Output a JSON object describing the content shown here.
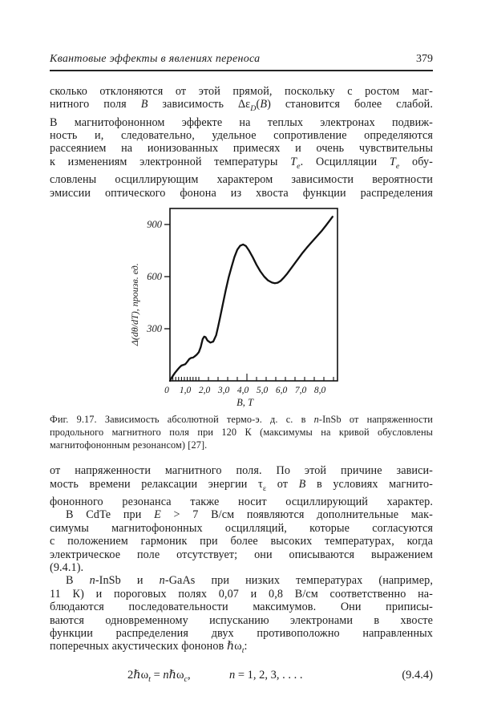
{
  "page": {
    "background": "#ffffff",
    "text_color": "#1c1c1c",
    "page_number": "379"
  },
  "header": {
    "title": "Квантовые эффекты в явлениях переноса"
  },
  "paragraphs": [
    {
      "id": "p1",
      "lines": [
        {
          "html": "сколько отклоняются от этой прямой, поскольку с ростом маг-",
          "j": true,
          "ind": false
        },
        {
          "html": "нитного поля <i>B</i> зависимость Δε<sub><i>D</i></sub>(<i>B</i>) становится более слабой.",
          "j": true,
          "ind": false
        },
        {
          "html": "В магнитофононном эффекте на теплых электронах подвиж-",
          "j": true,
          "ind": false
        },
        {
          "html": "ность и, следовательно, удельное сопротивление определяются",
          "j": true,
          "ind": false
        },
        {
          "html": "рассеянием на ионизованных примесях и очень чувствительны",
          "j": true,
          "ind": false
        },
        {
          "html": "к изменениям электронной температуры <i>T<sub>e</sub></i>. Осцилляции <i>T<sub>e</sub></i> обу-",
          "j": true,
          "ind": false
        },
        {
          "html": "словлены осциллирующим характером зависимости вероятности",
          "j": true,
          "ind": false
        },
        {
          "html": "эмиссии оптического фонона из хвоста функции распределения",
          "j": true,
          "ind": false
        }
      ]
    },
    {
      "id": "p2",
      "lines": [
        {
          "html": "от напряженности магнитного поля. По этой причине зависи-",
          "j": true,
          "ind": false
        },
        {
          "html": "мость времени релаксации энергии τ<sub>ε</sub> от <i>B</i> в условиях магнито-",
          "j": true,
          "ind": false
        },
        {
          "html": "фононного резонанса также носит осциллирующий характер.",
          "j": true,
          "ind": false
        }
      ]
    },
    {
      "id": "p3",
      "lines": [
        {
          "html": "В CdTe при <i>E</i> &gt; 7 В/см появляются дополнительные мак-",
          "j": true,
          "ind": true
        },
        {
          "html": "симумы магнитофононных осцилляций, которые согласуются",
          "j": true,
          "ind": false
        },
        {
          "html": "с положением гармоник при более высоких температурах, когда",
          "j": true,
          "ind": false
        },
        {
          "html": "электрическое поле отсутствует; они описываются выражением",
          "j": true,
          "ind": false
        },
        {
          "html": "(9.4.1).",
          "j": false,
          "ind": false
        }
      ]
    },
    {
      "id": "p4",
      "lines": [
        {
          "html": "В <i>n</i>-InSb и <i>n</i>-GaAs при низких температурах (например,",
          "j": true,
          "ind": true
        },
        {
          "html": "11 К) и пороговых полях 0,07 и 0,8 В/см соответственно на-",
          "j": true,
          "ind": false
        },
        {
          "html": "блюдаются последовательности максимумов. Они приписы-",
          "j": true,
          "ind": false
        },
        {
          "html": "ваются одновременному испусканию электронами в хвосте",
          "j": true,
          "ind": false
        },
        {
          "html": "функции распределения двух противоположно направленных",
          "j": true,
          "ind": false
        },
        {
          "html": "поперечных акустических фононов ℏω<sub><i>t</i></sub>:",
          "j": false,
          "ind": false
        }
      ]
    }
  ],
  "figure_caption": {
    "lines": [
      {
        "html": "Фиг. 9.17. Зависимость абсолютной термо-э. д. с. в <i>n</i>-InSb от напряженности",
        "j": true
      },
      {
        "html": "продольного магнитного поля при 120 К (максимумы на кривой обусловлены",
        "j": true
      },
      {
        "html": "магнитофононным резонансом) [27].",
        "j": false
      }
    ]
  },
  "equation": {
    "lhs": "2ℏω<sub><i>t</i></sub> = <i>n</i>ℏω<sub><i>c</i></sub>,",
    "mid": "<i>n</i> = 1, 2, 3, . . . .",
    "number": "(9.4.4)"
  },
  "chart_data": {
    "type": "line",
    "title": "",
    "xlabel": "В, Т",
    "ylabel": "Δ(dθ/dT), произв. ед.",
    "xlim": [
      0,
      8.7
    ],
    "ylim": [
      0,
      990
    ],
    "grid": false,
    "legend": "none",
    "x_tick_labels": [
      {
        "v": 0,
        "label": "0"
      },
      {
        "v": 1,
        "label": "1,0"
      },
      {
        "v": 2,
        "label": "2,0"
      },
      {
        "v": 3,
        "label": "3,0"
      },
      {
        "v": 4,
        "label": "4,0"
      },
      {
        "v": 5,
        "label": "5,0"
      },
      {
        "v": 6,
        "label": "6,0"
      },
      {
        "v": 7,
        "label": "7,0"
      },
      {
        "v": 8,
        "label": "8,0"
      }
    ],
    "x_minor_ticks": [
      0.15,
      0.3,
      0.45,
      0.6,
      0.75,
      0.9,
      1.05,
      1.2,
      1.35,
      1.5,
      2,
      2.5,
      3,
      3.5,
      4.5,
      5,
      5.5,
      6,
      6.5,
      7,
      7.5,
      8,
      8.5
    ],
    "x_tall_tick": 4.0,
    "y_ticks": [
      {
        "v": 300,
        "label": "300"
      },
      {
        "v": 600,
        "label": "600"
      },
      {
        "v": 900,
        "label": "900"
      }
    ],
    "line_color": "#111111",
    "series": [
      {
        "name": "thermo-emf vs B",
        "points": [
          [
            0,
            0
          ],
          [
            0.1,
            20
          ],
          [
            0.25,
            45
          ],
          [
            0.4,
            65
          ],
          [
            0.5,
            78
          ],
          [
            0.6,
            88
          ],
          [
            0.7,
            92
          ],
          [
            0.8,
            96
          ],
          [
            0.9,
            110
          ],
          [
            1.0,
            125
          ],
          [
            1.1,
            132
          ],
          [
            1.2,
            134
          ],
          [
            1.3,
            142
          ],
          [
            1.4,
            152
          ],
          [
            1.5,
            165
          ],
          [
            1.6,
            195
          ],
          [
            1.7,
            240
          ],
          [
            1.78,
            255
          ],
          [
            1.85,
            252
          ],
          [
            1.95,
            232
          ],
          [
            2.1,
            220
          ],
          [
            2.25,
            226
          ],
          [
            2.4,
            262
          ],
          [
            2.5,
            310
          ],
          [
            2.6,
            362
          ],
          [
            2.75,
            442
          ],
          [
            2.9,
            522
          ],
          [
            3.05,
            595
          ],
          [
            3.2,
            655
          ],
          [
            3.35,
            712
          ],
          [
            3.5,
            755
          ],
          [
            3.65,
            778
          ],
          [
            3.8,
            785
          ],
          [
            3.95,
            776
          ],
          [
            4.1,
            752
          ],
          [
            4.3,
            712
          ],
          [
            4.5,
            668
          ],
          [
            4.7,
            630
          ],
          [
            4.9,
            600
          ],
          [
            5.1,
            578
          ],
          [
            5.3,
            566
          ],
          [
            5.45,
            562
          ],
          [
            5.6,
            565
          ],
          [
            5.75,
            575
          ],
          [
            5.9,
            592
          ],
          [
            6.1,
            618
          ],
          [
            6.3,
            648
          ],
          [
            6.5,
            678
          ],
          [
            6.7,
            708
          ],
          [
            6.9,
            738
          ],
          [
            7.1,
            765
          ],
          [
            7.3,
            790
          ],
          [
            7.5,
            815
          ],
          [
            7.7,
            840
          ],
          [
            7.9,
            865
          ],
          [
            8.1,
            893
          ],
          [
            8.3,
            922
          ],
          [
            8.45,
            945
          ]
        ]
      }
    ]
  }
}
